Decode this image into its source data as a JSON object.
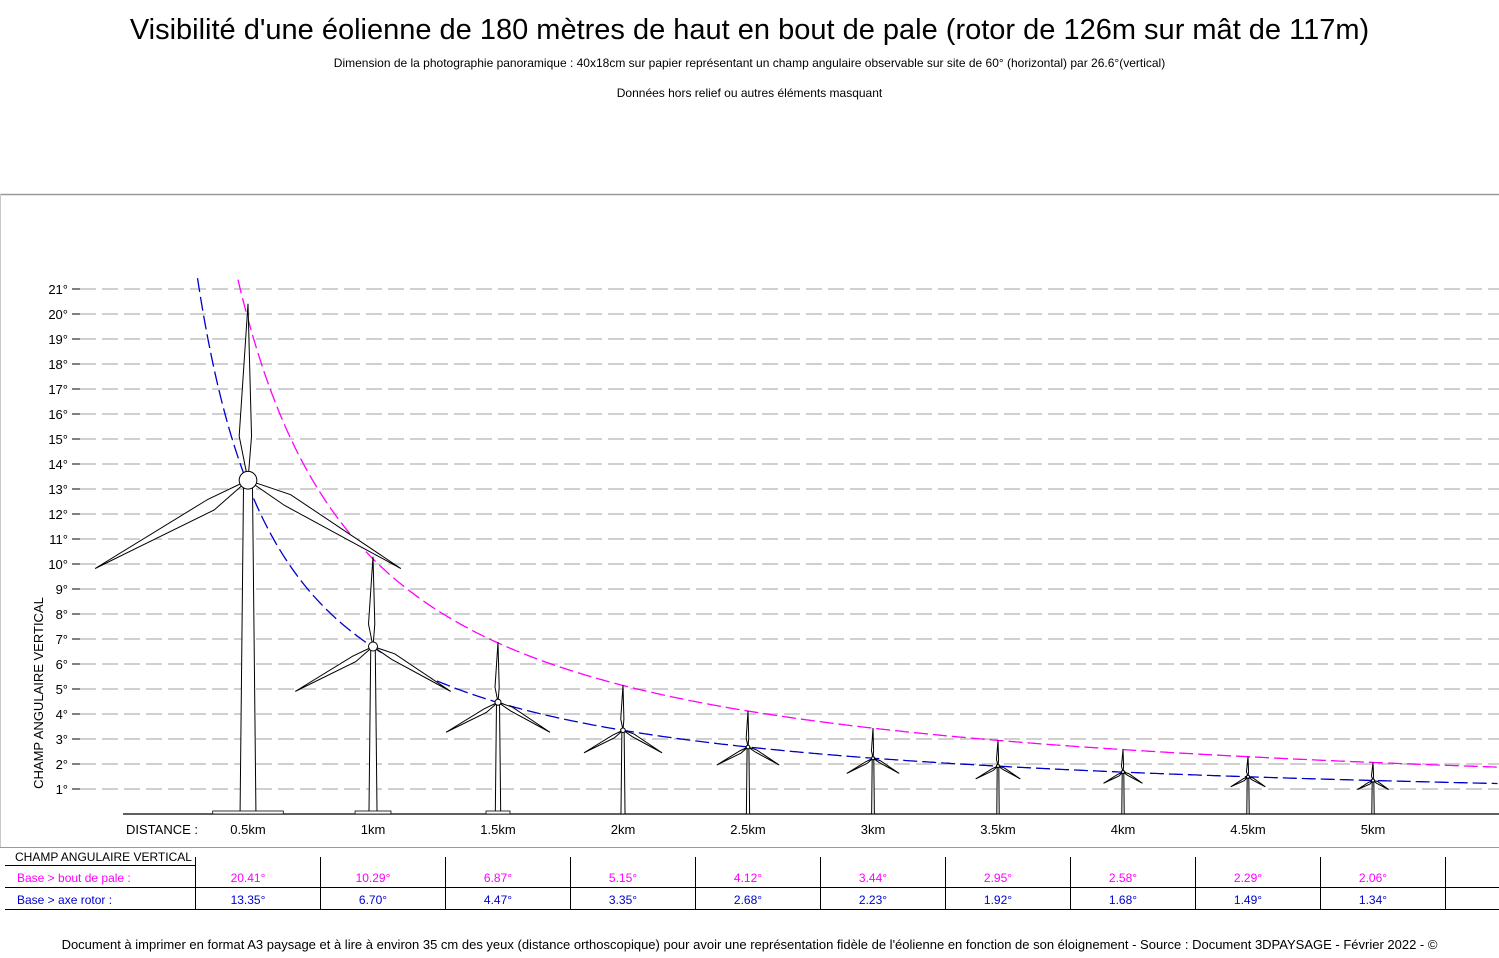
{
  "header": {
    "title": "Visibilité d'une éolienne de 180 mètres de haut en bout de pale (rotor de 126m sur mât de 117m)",
    "subtitle": "Dimension de la photographie panoramique : 40x18cm sur papier représentant un champ angulaire observable sur site de 60° (horizontal) par 26.6°(vertical)",
    "note": "Données hors relief ou autres éléments masquant"
  },
  "footer": {
    "text": "Document à imprimer en format A3 paysage et à lire à environ 35 cm des yeux (distance orthoscopique) pour avoir une représentation fidèle de l'éolienne en fonction de son éloignement - Source : Document 3DPAYSAGE - Février 2022 - ©"
  },
  "colors": {
    "tip": "#ff00ff",
    "hub": "#0000cc",
    "grid": "#d0d0d0",
    "turbine": "#000000"
  },
  "chart_data": {
    "type": "line",
    "ylabel": "CHAMP ANGULAIRE VERTICAL",
    "xlabel": "DISTANCE :",
    "ylim": [
      0,
      21
    ],
    "yticks": [
      "1°",
      "2°",
      "3°",
      "4°",
      "5°",
      "6°",
      "7°",
      "8°",
      "9°",
      "10°",
      "11°",
      "12°",
      "13°",
      "14°",
      "15°",
      "16°",
      "17°",
      "18°",
      "19°",
      "20°",
      "21°"
    ],
    "grid": true,
    "categories": [
      "0.5km",
      "1km",
      "1.5km",
      "2km",
      "2.5km",
      "3km",
      "3.5km",
      "4km",
      "4.5km",
      "5km"
    ],
    "distances_km": [
      0.5,
      1,
      1.5,
      2,
      2.5,
      3,
      3.5,
      4,
      4.5,
      5
    ],
    "series": [
      {
        "name": "Base > bout de pale :",
        "color": "#ff00ff",
        "values": [
          20.41,
          10.29,
          6.87,
          5.15,
          4.12,
          3.44,
          2.95,
          2.58,
          2.29,
          2.06
        ],
        "labels": [
          "20.41°",
          "10.29°",
          "6.87°",
          "5.15°",
          "4.12°",
          "3.44°",
          "2.95°",
          "2.58°",
          "2.29°",
          "2.06°"
        ]
      },
      {
        "name": "Base > axe rotor :",
        "color": "#0000cc",
        "values": [
          13.35,
          6.7,
          4.47,
          3.35,
          2.68,
          2.23,
          1.92,
          1.68,
          1.49,
          1.34
        ],
        "labels": [
          "13.35°",
          "6.70°",
          "4.47°",
          "3.35°",
          "2.68°",
          "2.23°",
          "1.92°",
          "1.68°",
          "1.49°",
          "1.34°"
        ]
      }
    ],
    "table_header": "CHAMP ANGULAIRE VERTICAL"
  }
}
